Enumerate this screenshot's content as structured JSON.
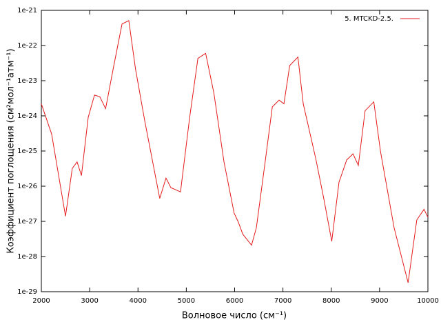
{
  "chart_data": {
    "type": "line",
    "x_label": "Волновое число (см⁻¹)",
    "y_label": "Коэффициент поглощения (см²мол⁻¹атм⁻¹)",
    "log_y": true,
    "legend": "top-right",
    "xlim": [
      2000,
      10000
    ],
    "xticks": [
      2000,
      3000,
      4000,
      5000,
      6000,
      7000,
      8000,
      9000,
      10000
    ],
    "ylim": [
      1e-29,
      1e-21
    ],
    "yticks": [
      {
        "value": 1e-29,
        "label": "1e-29"
      },
      {
        "value": 1e-28,
        "label": "1e-28"
      },
      {
        "value": 1e-27,
        "label": "1e-27"
      },
      {
        "value": 1e-26,
        "label": "1e-26"
      },
      {
        "value": 1e-25,
        "label": "1e-25"
      },
      {
        "value": 1e-24,
        "label": "1e-24"
      },
      {
        "value": 1e-23,
        "label": "1e-23"
      },
      {
        "value": 1e-22,
        "label": "1e-22"
      },
      {
        "value": 1e-21,
        "label": "1e-21"
      }
    ],
    "x": [
      2000,
      2214,
      2500,
      2640,
      2740,
      2830,
      2970,
      3100,
      3210,
      3330,
      3500,
      3670,
      3810,
      3950,
      4140,
      4450,
      4580,
      4680,
      4880,
      5070,
      5240,
      5400,
      5570,
      5780,
      5990,
      6070,
      6170,
      6350,
      6450,
      6640,
      6780,
      6920,
      7020,
      7140,
      7310,
      7420,
      7680,
      7850,
      8010,
      8160,
      8320,
      8450,
      8560,
      8700,
      8880,
      9020,
      9300,
      9590,
      9770,
      9920,
      10000
    ],
    "series": [
      {
        "name": "5. MTCKD-2.5.",
        "color": "#e41a1c",
        "values": [
          2.2e-24,
          3e-25,
          1.4e-27,
          3.2e-26,
          4.9e-26,
          2e-26,
          9.1e-25,
          3.9e-24,
          3.5e-24,
          1.6e-24,
          2.7e-23,
          4.1e-22,
          5.1e-22,
          2.1e-23,
          7.2e-25,
          4.5e-27,
          1.7e-26,
          9.1e-27,
          6.9e-27,
          9.1e-25,
          4.3e-23,
          6e-23,
          4.5e-24,
          4.9e-26,
          1.7e-27,
          1e-27,
          4.3e-28,
          2.1e-28,
          6.6e-28,
          6e-26,
          1.8e-24,
          2.8e-24,
          2.2e-24,
          2.7e-23,
          4.7e-23,
          2.2e-24,
          6e-26,
          4.1e-27,
          2.7e-28,
          1.3e-26,
          5.6e-26,
          8.3e-26,
          3.9e-26,
          1.4e-24,
          2.5e-24,
          9.5e-26,
          6.6e-28,
          1.8e-29,
          1.1e-27,
          2.2e-27,
          1.3e-27
        ]
      }
    ]
  }
}
